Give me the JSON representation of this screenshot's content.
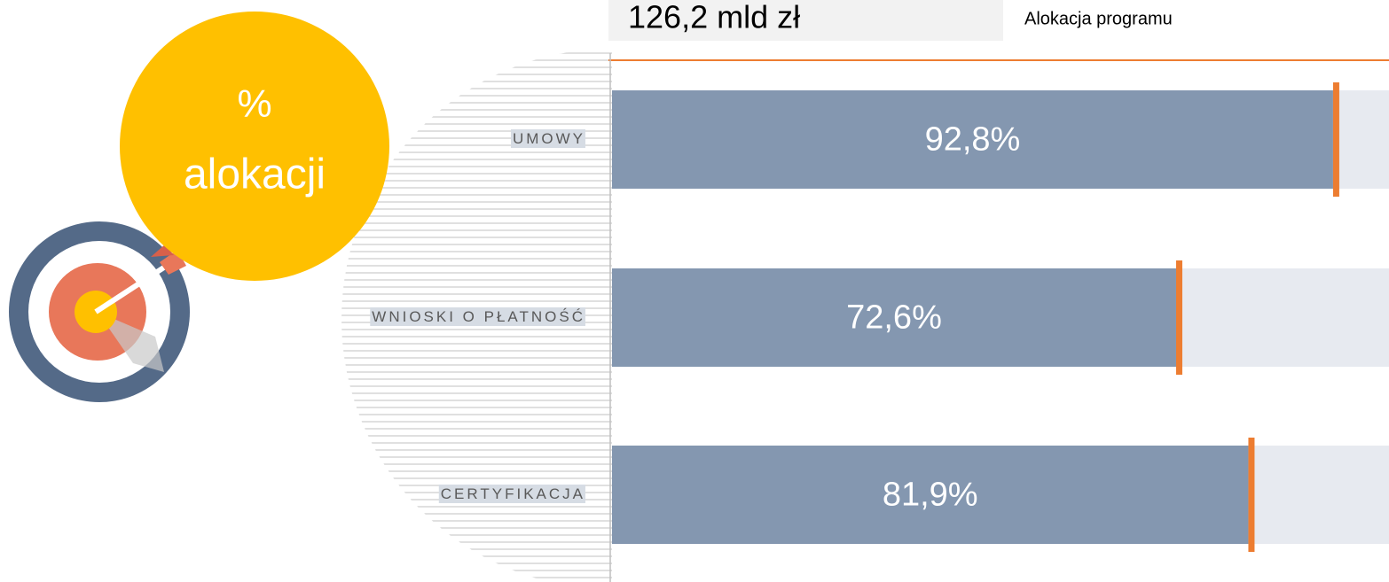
{
  "header": {
    "amount": "126,2 mld zł",
    "caption": "Alokacja programu"
  },
  "badge": {
    "line1": "%",
    "line2": "alokacji"
  },
  "chart_data": {
    "type": "bar",
    "orientation": "horizontal",
    "categories": [
      "UMOWY",
      "WNIOSKI O PŁATNOŚĆ",
      "CERTYFIKACJA"
    ],
    "values": [
      92.8,
      72.6,
      81.9
    ],
    "value_labels": [
      "92,8%",
      "72,6%",
      "81,9%"
    ],
    "color": "#8497b0",
    "xlim": [
      0,
      100
    ]
  }
}
